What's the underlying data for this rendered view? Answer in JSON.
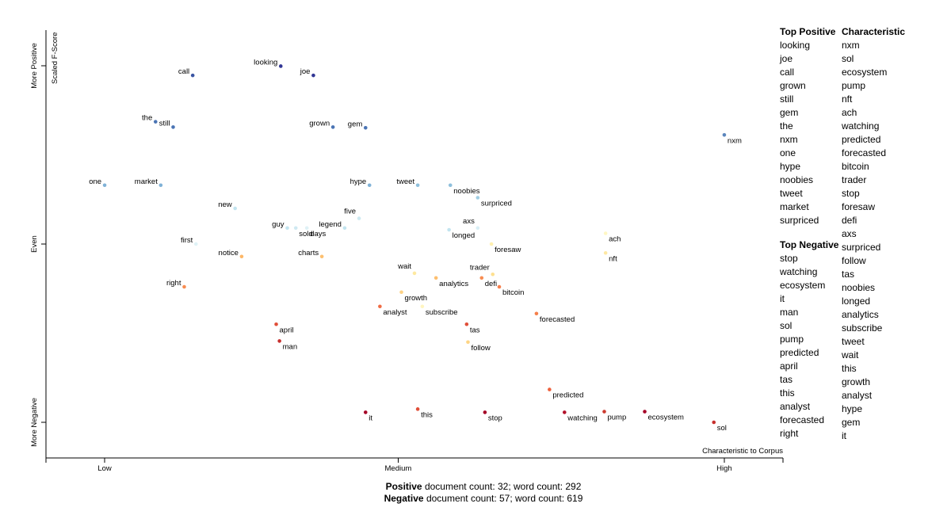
{
  "chart_data": {
    "type": "scatter",
    "x_axis": {
      "ticks": [
        {
          "label": "Low",
          "value": 0.05
        },
        {
          "label": "Medium",
          "value": 0.5
        },
        {
          "label": "High",
          "value": 1.0
        }
      ],
      "corner_label": "Characteristic to Corpus",
      "range": [
        -0.04,
        1.09
      ]
    },
    "y_axis": {
      "label": "Scaled F-Score",
      "ticks": [
        {
          "label": "More Positive",
          "value": 1.0
        },
        {
          "label": "Even",
          "value": 0.5
        },
        {
          "label": "More Negative",
          "value": 0.0
        }
      ],
      "range": [
        -0.1,
        1.1
      ]
    },
    "points": [
      {
        "term": "looking",
        "x": 0.32,
        "y": 0.999,
        "color": "#313695"
      },
      {
        "term": "joe",
        "x": 0.37,
        "y": 0.973,
        "color": "#313695"
      },
      {
        "term": "call",
        "x": 0.185,
        "y": 0.973,
        "color": "#3a55a3"
      },
      {
        "term": "the",
        "x": 0.128,
        "y": 0.843,
        "color": "#4a74b4"
      },
      {
        "term": "still",
        "x": 0.155,
        "y": 0.828,
        "color": "#4a74b4"
      },
      {
        "term": "grown",
        "x": 0.4,
        "y": 0.828,
        "color": "#4a74b4"
      },
      {
        "term": "gem",
        "x": 0.45,
        "y": 0.826,
        "color": "#4a74b4"
      },
      {
        "term": "nxm",
        "x": 1.0,
        "y": 0.806,
        "color": "#5b86bd"
      },
      {
        "term": "one",
        "x": 0.05,
        "y": 0.665,
        "color": "#80b2d7"
      },
      {
        "term": "market",
        "x": 0.136,
        "y": 0.665,
        "color": "#80b2d7"
      },
      {
        "term": "hype",
        "x": 0.456,
        "y": 0.665,
        "color": "#80b2d7"
      },
      {
        "term": "tweet",
        "x": 0.53,
        "y": 0.665,
        "color": "#8ebfdc"
      },
      {
        "term": "noobies",
        "x": 0.58,
        "y": 0.665,
        "color": "#8ebfdc"
      },
      {
        "term": "surpriced",
        "x": 0.622,
        "y": 0.63,
        "color": "#a0cde3"
      },
      {
        "term": "new",
        "x": 0.25,
        "y": 0.6,
        "color": "#c2e4ef"
      },
      {
        "term": "five",
        "x": 0.44,
        "y": 0.572,
        "color": "#cde9f1"
      },
      {
        "term": "legend",
        "x": 0.418,
        "y": 0.545,
        "color": "#c2e4ef"
      },
      {
        "term": "guy",
        "x": 0.33,
        "y": 0.545,
        "color": "#c2e4ef"
      },
      {
        "term": "sold",
        "x": 0.343,
        "y": 0.545,
        "color": "#cfe9f2"
      },
      {
        "term": "days",
        "x": 0.36,
        "y": 0.545,
        "color": "#dff1f6"
      },
      {
        "term": "longed",
        "x": 0.578,
        "y": 0.54,
        "color": "#c2e4ef"
      },
      {
        "term": "axs",
        "x": 0.622,
        "y": 0.545,
        "color": "#d8eef5"
      },
      {
        "term": "ach",
        "x": 0.818,
        "y": 0.53,
        "color": "#fff7c4"
      },
      {
        "term": "first",
        "x": 0.19,
        "y": 0.5,
        "color": "#dff2f6"
      },
      {
        "term": "foresaw",
        "x": 0.643,
        "y": 0.5,
        "color": "#fff0b0"
      },
      {
        "term": "notice",
        "x": 0.26,
        "y": 0.465,
        "color": "#fdb767"
      },
      {
        "term": "charts",
        "x": 0.383,
        "y": 0.465,
        "color": "#fdc070"
      },
      {
        "term": "nft",
        "x": 0.818,
        "y": 0.475,
        "color": "#fee8a3"
      },
      {
        "term": "trader",
        "x": 0.645,
        "y": 0.415,
        "color": "#fee090"
      },
      {
        "term": "wait",
        "x": 0.525,
        "y": 0.418,
        "color": "#fee9a0"
      },
      {
        "term": "analytics",
        "x": 0.558,
        "y": 0.405,
        "color": "#fdbf6f"
      },
      {
        "term": "defi",
        "x": 0.628,
        "y": 0.405,
        "color": "#f88d52"
      },
      {
        "term": "bitcoin",
        "x": 0.655,
        "y": 0.38,
        "color": "#f67e4b"
      },
      {
        "term": "growth",
        "x": 0.505,
        "y": 0.365,
        "color": "#fdd286"
      },
      {
        "term": "right",
        "x": 0.172,
        "y": 0.38,
        "color": "#f88d52"
      },
      {
        "term": "subscribe",
        "x": 0.537,
        "y": 0.325,
        "color": "#fff5c0"
      },
      {
        "term": "analyst",
        "x": 0.472,
        "y": 0.325,
        "color": "#f06c44"
      },
      {
        "term": "forecasted",
        "x": 0.712,
        "y": 0.305,
        "color": "#f57f4a"
      },
      {
        "term": "april",
        "x": 0.313,
        "y": 0.275,
        "color": "#e04f39"
      },
      {
        "term": "tas",
        "x": 0.605,
        "y": 0.275,
        "color": "#e04f39"
      },
      {
        "term": "man",
        "x": 0.318,
        "y": 0.228,
        "color": "#c7302e"
      },
      {
        "term": "follow",
        "x": 0.607,
        "y": 0.225,
        "color": "#fed585"
      },
      {
        "term": "predicted",
        "x": 0.732,
        "y": 0.092,
        "color": "#ee613d"
      },
      {
        "term": "it",
        "x": 0.45,
        "y": 0.028,
        "color": "#a50026"
      },
      {
        "term": "this",
        "x": 0.53,
        "y": 0.037,
        "color": "#e04f39"
      },
      {
        "term": "stop",
        "x": 0.633,
        "y": 0.028,
        "color": "#a50026"
      },
      {
        "term": "watching",
        "x": 0.755,
        "y": 0.028,
        "color": "#b3112a"
      },
      {
        "term": "pump",
        "x": 0.816,
        "y": 0.03,
        "color": "#cc3a2f"
      },
      {
        "term": "ecosystem",
        "x": 0.878,
        "y": 0.03,
        "color": "#a50026"
      },
      {
        "term": "sol",
        "x": 0.984,
        "y": 0.0,
        "color": "#c7302e"
      }
    ]
  },
  "top_positive": {
    "title": "Top Positive",
    "terms": [
      "looking",
      "joe",
      "call",
      "grown",
      "still",
      "gem",
      "the",
      "nxm",
      "one",
      "hype",
      "noobies",
      "tweet",
      "market",
      "surpriced"
    ]
  },
  "top_negative": {
    "title": "Top Negative",
    "terms": [
      "stop",
      "watching",
      "ecosystem",
      "it",
      "man",
      "sol",
      "pump",
      "predicted",
      "april",
      "tas",
      "this",
      "analyst",
      "forecasted",
      "right"
    ]
  },
  "characteristic": {
    "title": "Characteristic",
    "terms": [
      "nxm",
      "sol",
      "ecosystem",
      "pump",
      "nft",
      "ach",
      "watching",
      "predicted",
      "forecasted",
      "bitcoin",
      "trader",
      "stop",
      "foresaw",
      "defi",
      "axs",
      "surpriced",
      "follow",
      "tas",
      "noobies",
      "longed",
      "analytics",
      "subscribe",
      "tweet",
      "wait",
      "this",
      "growth",
      "analyst",
      "hype",
      "gem",
      "it"
    ]
  },
  "footer": {
    "positive_label": "Positive",
    "positive_text": " document count: 32; word count: 292",
    "negative_label": "Negative",
    "negative_text": " document count: 57; word count: 619"
  }
}
